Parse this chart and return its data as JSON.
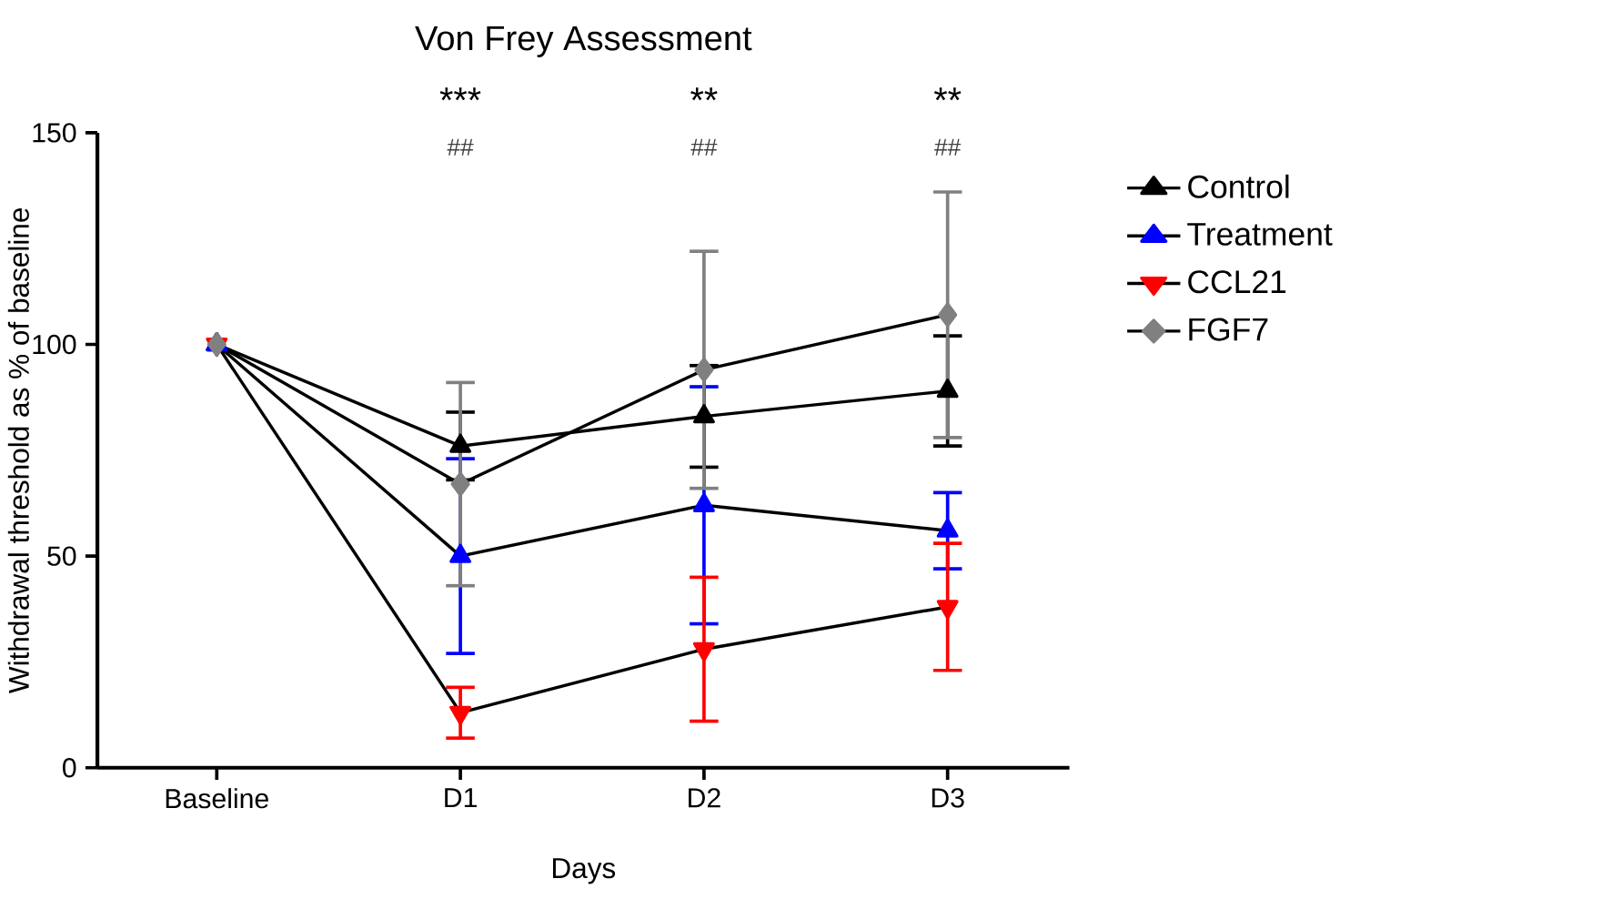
{
  "chart_data": {
    "type": "line",
    "title": "Von Frey Assessment",
    "xlabel": "Days",
    "ylabel": "Withdrawal threshold as % of baseline",
    "categories": [
      "Baseline",
      "D1",
      "D2",
      "D3"
    ],
    "ylim": [
      0,
      150
    ],
    "yticks": [
      0,
      50,
      100,
      150
    ],
    "grid": false,
    "legend": "right",
    "series": [
      {
        "name": "Control",
        "color": "#000000",
        "marker": "triangle",
        "values": [
          100,
          76,
          83,
          89
        ],
        "errors": [
          null,
          8,
          12,
          13
        ]
      },
      {
        "name": "Treatment",
        "color": "#0000ff",
        "marker": "triangle",
        "values": [
          100,
          50,
          62,
          56
        ],
        "errors": [
          null,
          23,
          28,
          9
        ]
      },
      {
        "name": "CCL21",
        "color": "#ff0000",
        "marker": "triangle-down",
        "values": [
          100,
          13,
          28,
          38
        ],
        "errors": [
          null,
          6,
          17,
          15
        ]
      },
      {
        "name": "FGF7",
        "color": "#808080",
        "marker": "diamond",
        "values": [
          100,
          67,
          94,
          107
        ],
        "errors": [
          null,
          24,
          28,
          29
        ]
      }
    ],
    "annotations": [
      "***",
      "**",
      "**",
      "##",
      "##",
      "##"
    ]
  }
}
